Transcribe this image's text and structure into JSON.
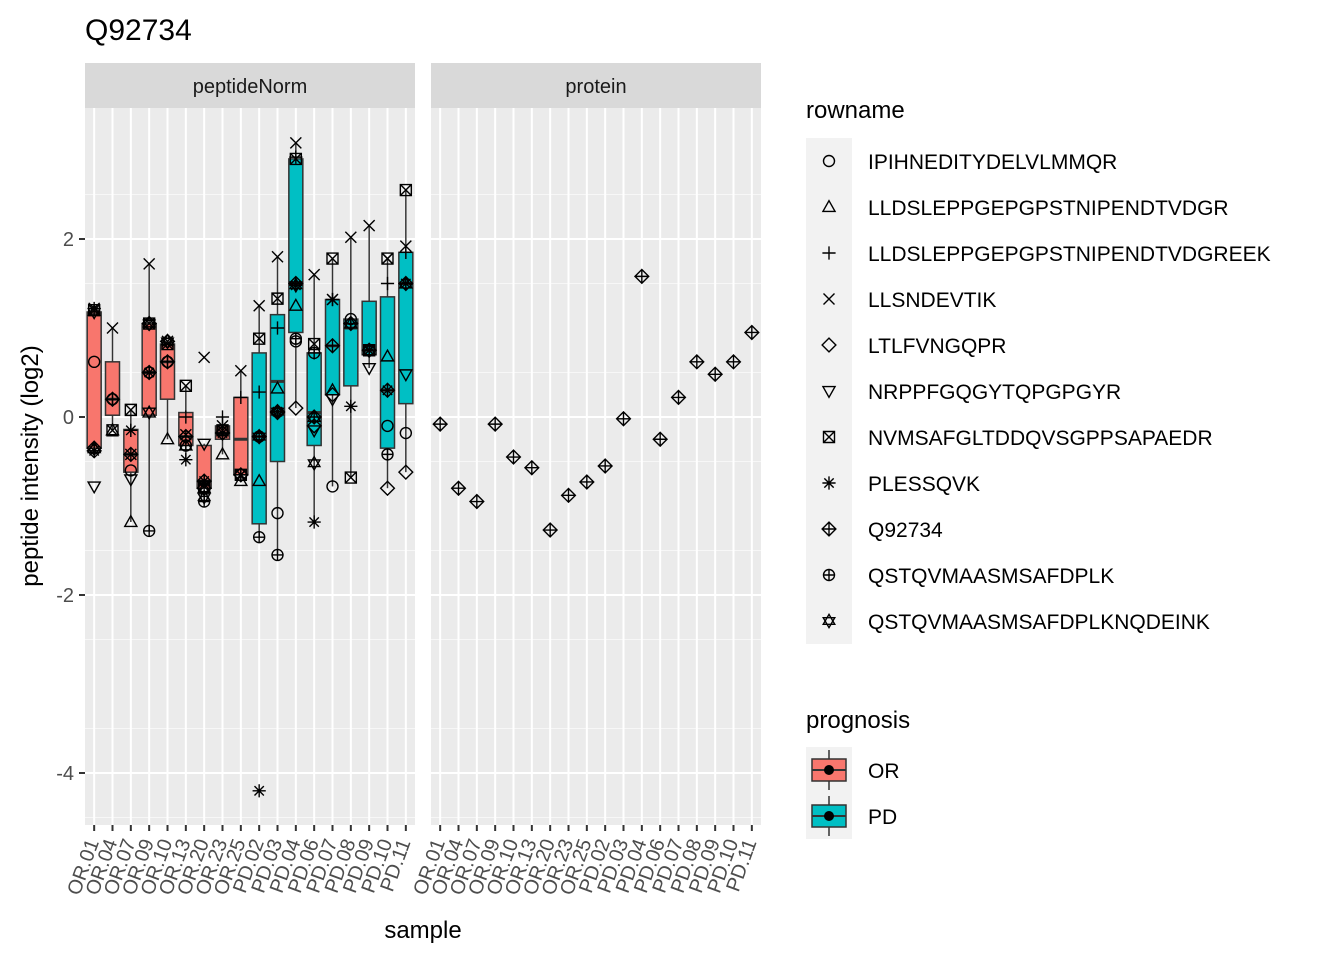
{
  "chart_data": {
    "type": "boxplot",
    "title": "Q92734",
    "xlabel": "sample",
    "ylabel": "peptide intensity (log2)",
    "ylim": [
      -4.5,
      3.2
    ],
    "yticks": [
      -4,
      -2,
      0,
      2
    ],
    "ytick_labels": [
      "-4",
      "-2",
      "0",
      "2"
    ],
    "grid": true,
    "panels": [
      "peptideNorm",
      "protein"
    ],
    "samples": [
      "OR.01",
      "OR.04",
      "OR.07",
      "OR.09",
      "OR.10",
      "OR.13",
      "OR.20",
      "OR.23",
      "OR.25",
      "PD.02",
      "PD.03",
      "PD.04",
      "PD.06",
      "PD.07",
      "PD.08",
      "PD.09",
      "PD.10",
      "PD.11"
    ],
    "groups": [
      "OR",
      "OR",
      "OR",
      "OR",
      "OR",
      "OR",
      "OR",
      "OR",
      "OR",
      "PD",
      "PD",
      "PD",
      "PD",
      "PD",
      "PD",
      "PD",
      "PD",
      "PD"
    ],
    "rownames": [
      "IPIHNEDITYDELVLMMQR",
      "LLDSLEPPGEPGPSTNIPENDTVDGR",
      "LLDSLEPPGEPGPSTNIPENDTVDGREEK",
      "LLSNDEVTIK",
      "LTLFVNGQPR",
      "NRPPFGQGYTQPGPGYR",
      "NVMSAFGLTDDQVSGPPSAPAEDR",
      "PLESSQVK",
      "Q92734",
      "QSTQVMAASMSAFDPLK",
      "QSTQVMAASMSAFDPLKNQDEINK"
    ],
    "shapes": [
      "circle",
      "triangle",
      "plus",
      "cross",
      "diamond",
      "triangle-down",
      "square-cross",
      "asterisk",
      "diamond-plus",
      "circle-plus",
      "star-of-david"
    ],
    "legend_rowname_title": "rowname",
    "legend_prognosis_title": "prognosis",
    "legend_position": "right",
    "prognosis": [
      {
        "name": "OR",
        "color": "#F8766D"
      },
      {
        "name": "PD",
        "color": "#00BFC4"
      }
    ],
    "boxes": [
      {
        "q1": -0.35,
        "median": 1.15,
        "q3": 1.18,
        "wlo": -0.42,
        "whi": 1.22
      },
      {
        "q1": 0.02,
        "median": 0.2,
        "q3": 0.62,
        "wlo": -0.15,
        "whi": 1.0
      },
      {
        "q1": -0.62,
        "median": -0.42,
        "q3": -0.14,
        "wlo": -1.18,
        "whi": 0.08
      },
      {
        "q1": 0.02,
        "median": 0.5,
        "q3": 1.05,
        "wlo": -1.28,
        "whi": 1.72
      },
      {
        "q1": 0.2,
        "median": 0.62,
        "q3": 0.82,
        "wlo": -0.25,
        "whi": 0.85
      },
      {
        "q1": -0.32,
        "median": -0.22,
        "q3": 0.05,
        "wlo": -0.48,
        "whi": 0.35
      },
      {
        "q1": -0.8,
        "median": -0.72,
        "q3": -0.32,
        "wlo": -0.95,
        "whi": -0.3
      },
      {
        "q1": -0.25,
        "median": -0.18,
        "q3": -0.1,
        "wlo": -0.42,
        "whi": 0.0
      },
      {
        "q1": -0.65,
        "median": -0.25,
        "q3": 0.22,
        "wlo": -0.72,
        "whi": 0.52
      },
      {
        "q1": -1.2,
        "median": -0.22,
        "q3": 0.72,
        "wlo": -1.35,
        "whi": 1.25
      },
      {
        "q1": -0.5,
        "median": 0.4,
        "q3": 1.15,
        "wlo": -1.55,
        "whi": 1.8
      },
      {
        "q1": 0.95,
        "median": 1.5,
        "q3": 2.9,
        "wlo": 0.1,
        "whi": 3.08
      },
      {
        "q1": -0.32,
        "median": 0.05,
        "q3": 0.72,
        "wlo": -1.18,
        "whi": 1.6
      },
      {
        "q1": 0.25,
        "median": 0.8,
        "q3": 1.32,
        "wlo": -0.78,
        "whi": 1.78
      },
      {
        "q1": 0.35,
        "median": 1.0,
        "q3": 1.1,
        "wlo": -0.68,
        "whi": 2.02
      },
      {
        "q1": 0.7,
        "median": 0.75,
        "q3": 1.3,
        "wlo": 0.55,
        "whi": 2.15
      },
      {
        "q1": -0.35,
        "median": 0.3,
        "q3": 1.35,
        "wlo": -0.8,
        "whi": 1.78
      },
      {
        "q1": 0.15,
        "median": 1.5,
        "q3": 1.85,
        "wlo": -0.62,
        "whi": 2.55
      }
    ],
    "points": [
      [
        0.62,
        -0.35,
        1.22,
        1.22,
        -0.35,
        -0.78,
        1.2,
        -0.38,
        -0.38,
        null,
        1.18
      ],
      [
        0.2,
        -0.15,
        0.2,
        1.0,
        null,
        null,
        -0.15,
        null,
        0.2,
        null,
        null
      ],
      [
        -0.6,
        -1.18,
        -0.15,
        -0.42,
        null,
        -0.7,
        0.08,
        -0.15,
        -0.42,
        null,
        null
      ],
      [
        0.5,
        0.05,
        0.5,
        1.72,
        1.05,
        0.05,
        1.05,
        0.5,
        0.5,
        -1.28,
        1.05
      ],
      [
        0.62,
        -0.25,
        0.62,
        0.85,
        0.85,
        null,
        0.82,
        null,
        0.62,
        null,
        0.85
      ],
      [
        -0.32,
        -0.32,
        0.0,
        -0.2,
        -0.22,
        null,
        0.35,
        -0.48,
        -0.22,
        -0.32,
        null
      ],
      [
        -0.78,
        -0.8,
        -0.72,
        0.67,
        -0.8,
        -0.3,
        -0.78,
        -0.72,
        -0.72,
        -0.95,
        -0.9
      ],
      [
        -0.15,
        -0.42,
        0.0,
        -0.1,
        null,
        null,
        -0.15,
        -0.18,
        -0.18,
        null,
        null
      ],
      [
        -0.65,
        -0.72,
        0.22,
        0.52,
        null,
        null,
        -0.65,
        -0.65,
        -0.65,
        null,
        null
      ],
      [
        -0.22,
        -0.72,
        0.28,
        1.25,
        null,
        null,
        0.88,
        -4.2,
        -0.22,
        -1.35,
        -0.22
      ],
      [
        -1.08,
        0.32,
        1.0,
        1.8,
        0.05,
        null,
        1.33,
        0.06,
        0.06,
        -1.55,
        0.06
      ],
      [
        0.85,
        1.25,
        2.92,
        3.08,
        0.1,
        null,
        2.9,
        1.48,
        1.5,
        0.88,
        1.48
      ],
      [
        0.72,
        0.0,
        0.72,
        1.6,
        -0.1,
        -0.15,
        0.82,
        -1.18,
        0.0,
        null,
        -0.52
      ],
      [
        -0.78,
        0.3,
        1.32,
        1.32,
        0.25,
        0.2,
        1.78,
        1.32,
        0.8,
        null,
        null
      ],
      [
        1.1,
        1.05,
        1.05,
        2.02,
        null,
        null,
        -0.68,
        0.12,
        1.05,
        null,
        null
      ],
      [
        0.75,
        0.75,
        0.75,
        2.15,
        null,
        0.55,
        0.75,
        0.75,
        0.75,
        null,
        null
      ],
      [
        -0.1,
        0.68,
        1.5,
        1.78,
        -0.8,
        null,
        1.78,
        0.3,
        0.3,
        -0.42,
        null
      ],
      [
        -0.18,
        1.5,
        1.85,
        1.92,
        -0.62,
        0.48,
        2.55,
        1.5,
        1.5,
        null,
        null
      ]
    ],
    "protein": [
      -0.08,
      -0.8,
      -0.95,
      -0.08,
      -0.45,
      -0.57,
      -1.27,
      -0.88,
      -0.73,
      -0.55,
      -0.02,
      1.58,
      -0.25,
      0.22,
      0.62,
      0.48,
      0.62,
      0.95
    ]
  }
}
